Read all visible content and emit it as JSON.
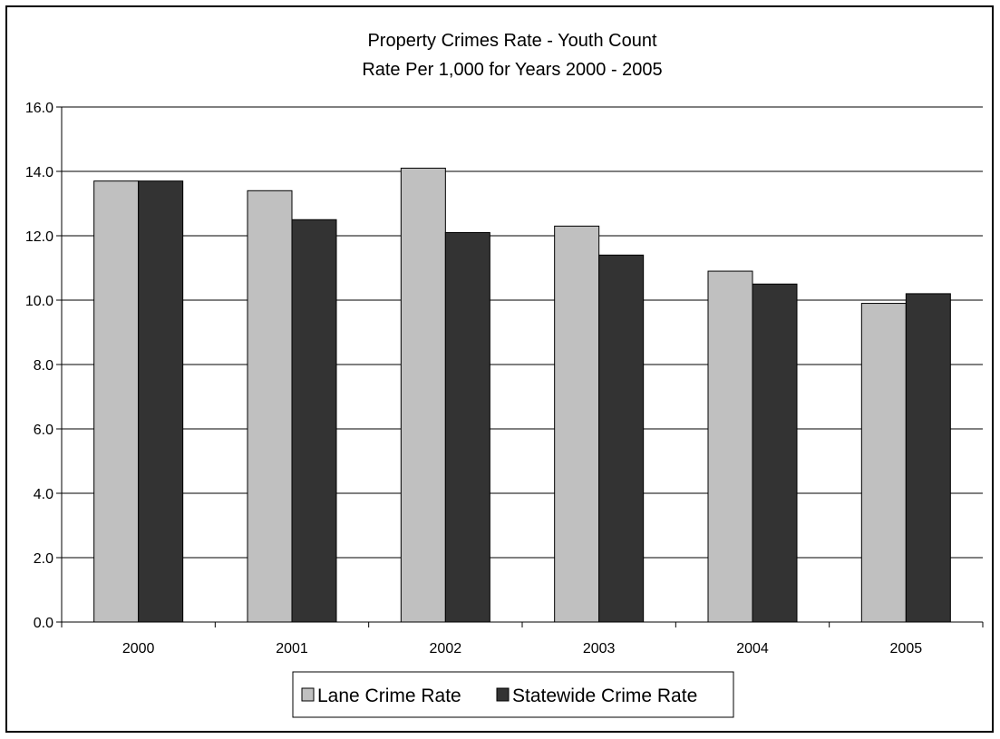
{
  "chart_data": {
    "type": "bar",
    "title": "Property Crimes Rate - Youth Count",
    "subtitle": "Rate Per 1,000 for Years 2000 - 2005",
    "xlabel": "",
    "ylabel": "",
    "categories": [
      "2000",
      "2001",
      "2002",
      "2003",
      "2004",
      "2005"
    ],
    "series": [
      {
        "name": "Lane Crime Rate",
        "color": "#c0c0c0",
        "values": [
          13.7,
          13.4,
          14.1,
          12.3,
          10.9,
          9.9
        ]
      },
      {
        "name": "Statewide Crime Rate",
        "color": "#333333",
        "values": [
          13.7,
          12.5,
          12.1,
          11.4,
          10.5,
          10.2
        ]
      }
    ],
    "ylim": [
      0,
      16
    ],
    "yticks": [
      "0.0",
      "2.0",
      "4.0",
      "6.0",
      "8.0",
      "10.0",
      "12.0",
      "14.0",
      "16.0"
    ],
    "grid": true,
    "legend": "bottom"
  }
}
